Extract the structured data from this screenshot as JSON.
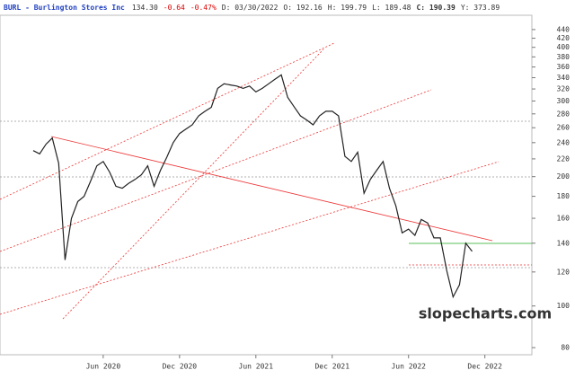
{
  "chart_data": {
    "type": "line",
    "header": [
      "BURL - Burlington Stores Inc",
      "134.30",
      "-0.64",
      "-0.47%",
      "D: 03/30/2022",
      "O: 192.16",
      "H: 199.79",
      "L: 189.48",
      "C: 190.39",
      "Y: 373.89"
    ],
    "watermark": "slopecharts.com",
    "log_scale": true,
    "color": "#222222",
    "categories": [
      null,
      null,
      null,
      null,
      null,
      null,
      null,
      null,
      null,
      null,
      null,
      "Jun 2020",
      null,
      null,
      null,
      null,
      null,
      null,
      null,
      null,
      null,
      null,
      null,
      "Dec 2020",
      null,
      null,
      null,
      null,
      null,
      null,
      null,
      null,
      null,
      null,
      null,
      "Jun 2021",
      null,
      null,
      null,
      null,
      null,
      null,
      null,
      null,
      null,
      null,
      null,
      "Dec 2021",
      null,
      null,
      null,
      null,
      null,
      null,
      null,
      null,
      null,
      null,
      null,
      "Jun 2022",
      null,
      null,
      null,
      null,
      null,
      null,
      null,
      null,
      null,
      null,
      null,
      "Dec 2022"
    ],
    "values": [
      230,
      226,
      238,
      246,
      215,
      128,
      160,
      175,
      180,
      195,
      212,
      217,
      205,
      190,
      188,
      193,
      197,
      202,
      212,
      190,
      207,
      222,
      240,
      252,
      258,
      264,
      277,
      284,
      290,
      321,
      329,
      327,
      325,
      321,
      325,
      315,
      321,
      329,
      337,
      345,
      306,
      291,
      277,
      271,
      264,
      277,
      284,
      284,
      277,
      223,
      217,
      228,
      183,
      197,
      207,
      217,
      188,
      171,
      148,
      151,
      146,
      159,
      156,
      144,
      144,
      121,
      105,
      112,
      140,
      134,
      null,
      null
    ],
    "ylim": [
      77,
      475
    ],
    "yticks": [
      80,
      100,
      120,
      140,
      160,
      180,
      200,
      220,
      240,
      260,
      280,
      300,
      320,
      340,
      360,
      380,
      400,
      420,
      440
    ]
  }
}
